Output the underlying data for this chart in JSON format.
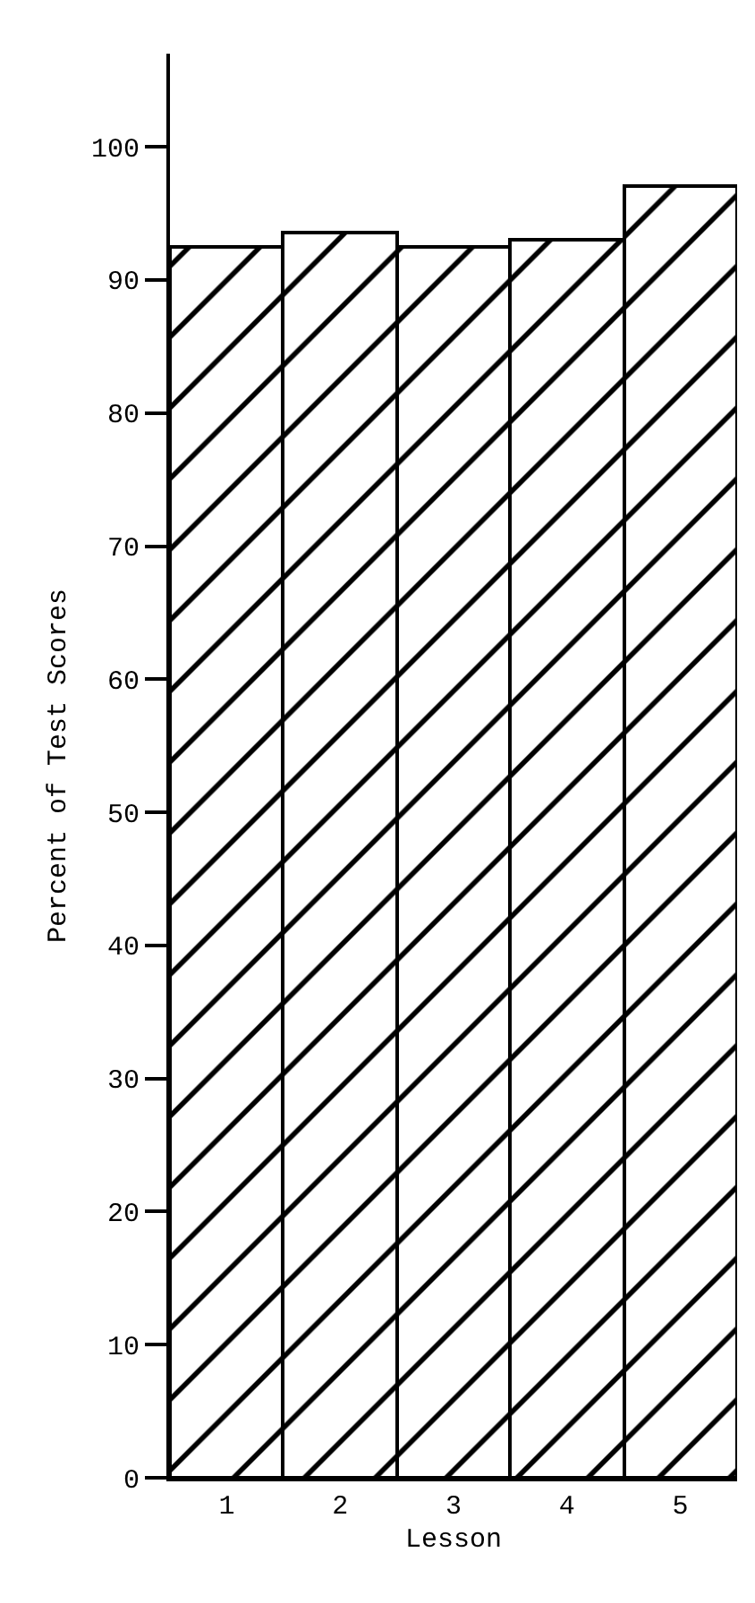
{
  "chart_data": {
    "type": "bar",
    "categories": [
      "1",
      "2",
      "3",
      "4",
      "5"
    ],
    "values": [
      92.5,
      93.5,
      92.5,
      93,
      97
    ],
    "color": "#000000",
    "xlabel": "Lesson",
    "ylabel": "Percent of Test Scores",
    "ylim": [
      0,
      107
    ],
    "yticks": [
      0,
      10,
      20,
      30,
      40,
      50,
      60,
      70,
      80,
      90,
      100
    ],
    "legend": false
  }
}
